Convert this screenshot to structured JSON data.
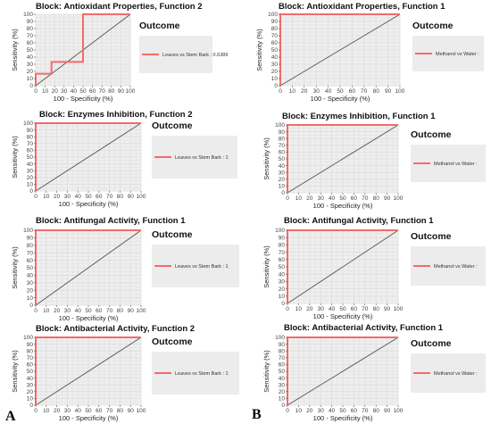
{
  "panel_labels": {
    "left": "A",
    "right": "B"
  },
  "colors": {
    "roc": "#f26b6b",
    "diagonal": "#555555",
    "grid": "#dcdcdc",
    "plot_bg": "#efefef",
    "legend_bg": "#ececec"
  },
  "chart_data": [
    {
      "type": "line",
      "title": "Block: Antioxidant Properties, Function 2",
      "xlabel": "100 - Specificity (%)",
      "ylabel": "Sensitivity (%)",
      "xlim": [
        0,
        100
      ],
      "ylim": [
        0,
        100
      ],
      "x_ticks": [
        0,
        10,
        20,
        30,
        40,
        50,
        60,
        70,
        80,
        90,
        100
      ],
      "y_ticks": [
        0,
        10,
        20,
        30,
        40,
        50,
        60,
        70,
        80,
        90,
        100
      ],
      "grid": true,
      "legend_title": "Outcome",
      "legend_position": "right",
      "series": [
        {
          "name": "Leaves vs Stem Bark : 0.6389",
          "x": [
            0,
            0,
            16.7,
            16.7,
            50,
            50,
            100
          ],
          "y": [
            0,
            16.7,
            16.7,
            33.3,
            33.3,
            100,
            100
          ]
        }
      ]
    },
    {
      "type": "line",
      "title": "Block: Enzymes Inhibition, Function 2",
      "xlabel": "100 - Specificity (%)",
      "ylabel": "Sensitivity (%)",
      "xlim": [
        0,
        100
      ],
      "ylim": [
        0,
        100
      ],
      "x_ticks": [
        0,
        10,
        20,
        30,
        40,
        50,
        60,
        70,
        80,
        90,
        100
      ],
      "y_ticks": [
        0,
        10,
        20,
        30,
        40,
        50,
        60,
        70,
        80,
        90,
        100
      ],
      "grid": true,
      "legend_title": "Outcome",
      "legend_position": "right",
      "series": [
        {
          "name": "Leaves vs Stem Bark : 1",
          "x": [
            0,
            0,
            100
          ],
          "y": [
            0,
            100,
            100
          ]
        }
      ]
    },
    {
      "type": "line",
      "title": "Block: Antifungal Activity, Function 1",
      "xlabel": "100 - Specificity (%)",
      "ylabel": "Sensitivity (%)",
      "xlim": [
        0,
        100
      ],
      "ylim": [
        0,
        100
      ],
      "x_ticks": [
        0,
        10,
        20,
        30,
        40,
        50,
        60,
        70,
        80,
        90,
        100
      ],
      "y_ticks": [
        0,
        10,
        20,
        30,
        40,
        50,
        60,
        70,
        80,
        90,
        100
      ],
      "grid": true,
      "legend_title": "Outcome",
      "legend_position": "right",
      "series": [
        {
          "name": "Leaves vs Stem Bark : 1",
          "x": [
            0,
            0,
            100
          ],
          "y": [
            0,
            100,
            100
          ]
        }
      ]
    },
    {
      "type": "line",
      "title": "Block: Antibacterial Activity, Function 2",
      "xlabel": "100 - Specificity (%)",
      "ylabel": "Sensitivity (%)",
      "xlim": [
        0,
        100
      ],
      "ylim": [
        0,
        100
      ],
      "x_ticks": [
        0,
        10,
        20,
        30,
        40,
        50,
        60,
        70,
        80,
        90,
        100
      ],
      "y_ticks": [
        0,
        10,
        20,
        30,
        40,
        50,
        60,
        70,
        80,
        90,
        100
      ],
      "grid": true,
      "legend_title": "Outcome",
      "legend_position": "right",
      "series": [
        {
          "name": "Leaves vs Stem Bark : 1",
          "x": [
            0,
            0,
            100
          ],
          "y": [
            0,
            100,
            100
          ]
        }
      ]
    },
    {
      "type": "line",
      "title": "Block: Antioxidant Properties, Function 1",
      "xlabel": "100 - Specificity (%)",
      "ylabel": "Sensitivity (%)",
      "xlim": [
        0,
        100
      ],
      "ylim": [
        0,
        100
      ],
      "x_ticks": [
        0,
        10,
        20,
        30,
        40,
        50,
        60,
        70,
        80,
        90,
        100
      ],
      "y_ticks": [
        0,
        10,
        20,
        30,
        40,
        50,
        60,
        70,
        80,
        90,
        100
      ],
      "grid": true,
      "legend_title": "Outcome",
      "legend_position": "right",
      "series": [
        {
          "name": "Methanol vs Water :",
          "x": [
            0,
            0,
            100
          ],
          "y": [
            0,
            100,
            100
          ]
        }
      ]
    },
    {
      "type": "line",
      "title": "Block: Enzymes Inhibition, Function 1",
      "xlabel": "100 - Specificity (%)",
      "ylabel": "Sensitivity (%)",
      "xlim": [
        0,
        100
      ],
      "ylim": [
        0,
        100
      ],
      "x_ticks": [
        0,
        10,
        20,
        30,
        40,
        50,
        60,
        70,
        80,
        90,
        100
      ],
      "y_ticks": [
        0,
        10,
        20,
        30,
        40,
        50,
        60,
        70,
        80,
        90,
        100
      ],
      "grid": true,
      "legend_title": "Outcome",
      "legend_position": "right",
      "series": [
        {
          "name": "Methanol vs Water :",
          "x": [
            0,
            0,
            100
          ],
          "y": [
            0,
            100,
            100
          ]
        }
      ]
    },
    {
      "type": "line",
      "title": "Block: Antifungal Activity, Function 1",
      "xlabel": "100 - Specificity (%)",
      "ylabel": "Sensitivity (%)",
      "xlim": [
        0,
        100
      ],
      "ylim": [
        0,
        100
      ],
      "x_ticks": [
        0,
        10,
        20,
        30,
        40,
        50,
        60,
        70,
        80,
        90,
        100
      ],
      "y_ticks": [
        0,
        10,
        20,
        30,
        40,
        50,
        60,
        70,
        80,
        90,
        100
      ],
      "grid": true,
      "legend_title": "Outcome",
      "legend_position": "right",
      "series": [
        {
          "name": "Methanol vs Water :",
          "x": [
            0,
            0,
            100
          ],
          "y": [
            0,
            100,
            100
          ]
        }
      ]
    },
    {
      "type": "line",
      "title": "Block: Antibacterial Activity, Function 1",
      "xlabel": "100 - Specificity (%)",
      "ylabel": "Sensitivity (%)",
      "xlim": [
        0,
        100
      ],
      "ylim": [
        0,
        100
      ],
      "x_ticks": [
        0,
        10,
        20,
        30,
        40,
        50,
        60,
        70,
        80,
        90,
        100
      ],
      "y_ticks": [
        0,
        10,
        20,
        30,
        40,
        50,
        60,
        70,
        80,
        90,
        100
      ],
      "grid": true,
      "legend_title": "Outcome",
      "legend_position": "right",
      "series": [
        {
          "name": "Methanol vs Water :",
          "x": [
            0,
            0,
            100
          ],
          "y": [
            0,
            100,
            100
          ]
        }
      ]
    }
  ]
}
